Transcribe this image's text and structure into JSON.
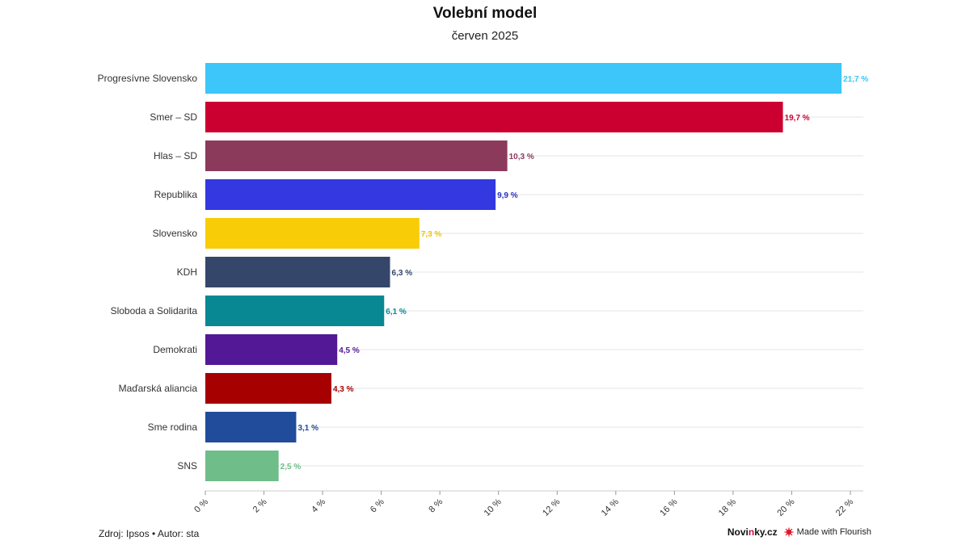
{
  "header": {
    "title": "Volební model",
    "subtitle": "červen 2025"
  },
  "footer": {
    "source": "Zdroj: Ipsos • Autor: sta",
    "brand_prefix": "Novi",
    "brand_accent": "n",
    "brand_suffix": "ky.cz",
    "credit": "Made with Flourish",
    "credit_icon": "flourish-star-icon"
  },
  "chart_data": {
    "type": "bar",
    "orientation": "horizontal",
    "categories": [
      "Progresívne Slovensko",
      "Smer – SD",
      "Hlas – SD",
      "Republika",
      "Slovensko",
      "KDH",
      "Sloboda a Solidarita",
      "Demokrati",
      "Maďarská aliancia",
      "Sme rodina",
      "SNS"
    ],
    "values": [
      21.7,
      19.7,
      10.3,
      9.9,
      7.3,
      6.3,
      6.1,
      4.5,
      4.3,
      3.1,
      2.5
    ],
    "value_labels": [
      "21,7 %",
      "19,7 %",
      "10,3 %",
      "9,9 %",
      "7,3 %",
      "6,3 %",
      "6,1 %",
      "4,5 %",
      "4,3 %",
      "3,1 %",
      "2,5 %"
    ],
    "colors": [
      "#3cc6fa",
      "#cc0030",
      "#8b3a5c",
      "#3338e0",
      "#f8cc07",
      "#34476b",
      "#078893",
      "#531896",
      "#a60000",
      "#214c9b",
      "#6fbd89"
    ],
    "label_colors": [
      "#3cc6fa",
      "#cc0030",
      "#8b3a5c",
      "#2a2fc4",
      "#f0c400",
      "#34476b",
      "#078893",
      "#531896",
      "#a60000",
      "#214c9b",
      "#6fbd89"
    ],
    "x_ticks": [
      0,
      2,
      4,
      6,
      8,
      10,
      12,
      14,
      16,
      18,
      20,
      22
    ],
    "x_tick_labels": [
      "0 %",
      "2 %",
      "4 %",
      "6 %",
      "8 %",
      "10 %",
      "12 %",
      "14 %",
      "16 %",
      "18 %",
      "20 %",
      "22 %"
    ],
    "xlim": [
      0,
      22.5
    ],
    "grid": "horizontal",
    "legend": "none",
    "title": "Volební model",
    "subtitle": "červen 2025"
  }
}
